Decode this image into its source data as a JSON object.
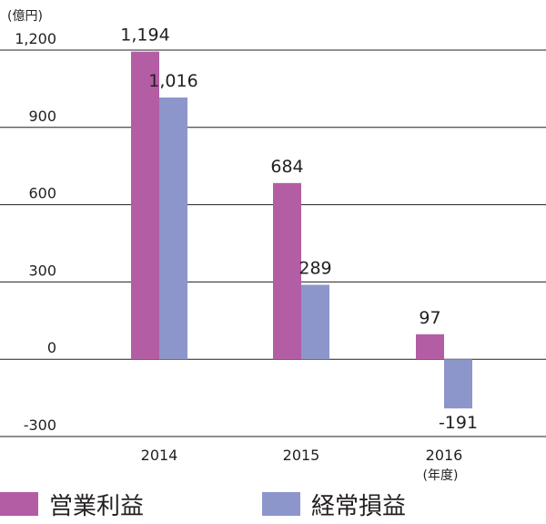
{
  "chart_data": {
    "type": "bar",
    "unit_label": "(億円)",
    "x_unit_label": "(年度)",
    "categories": [
      "2014",
      "2015",
      "2016"
    ],
    "series": [
      {
        "name": "営業利益",
        "values": [
          1194,
          684,
          97
        ],
        "labels": [
          "1,194",
          "684",
          "97"
        ],
        "color": "#b35da5"
      },
      {
        "name": "経常損益",
        "values": [
          1016,
          289,
          -191
        ],
        "labels": [
          "1,016",
          "289",
          "-191"
        ],
        "color": "#8c96cb"
      }
    ],
    "y_ticks": [
      1200,
      900,
      600,
      300,
      0,
      -300
    ],
    "y_tick_labels": [
      "1,200",
      "900",
      "600",
      "300",
      "0",
      "-300"
    ],
    "ylim": [
      -300,
      1200
    ],
    "grid": true,
    "legend_position": "bottom"
  }
}
